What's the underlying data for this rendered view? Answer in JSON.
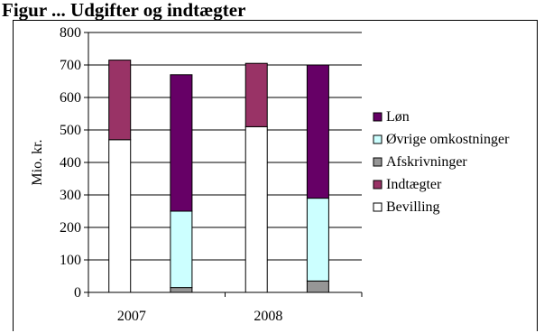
{
  "title": "Figur ...  Udgifter og indtægter",
  "chart_data": {
    "type": "bar",
    "stacked": true,
    "ylabel": "Mio. kr.",
    "ylim": [
      0,
      800
    ],
    "yticks": [
      0,
      100,
      200,
      300,
      400,
      500,
      600,
      700,
      800
    ],
    "groups": [
      {
        "label": "2007",
        "bars": [
          {
            "segments": [
              {
                "series": "Bevilling",
                "value": 470
              },
              {
                "series": "Indtægter",
                "value": 245
              }
            ]
          },
          {
            "segments": [
              {
                "series": "Afskrivninger",
                "value": 15
              },
              {
                "series": "Øvrige omkostninger",
                "value": 235
              },
              {
                "series": "Løn",
                "value": 420
              }
            ]
          }
        ]
      },
      {
        "label": "2008",
        "bars": [
          {
            "segments": [
              {
                "series": "Bevilling",
                "value": 510
              },
              {
                "series": "Indtægter",
                "value": 195
              }
            ]
          },
          {
            "segments": [
              {
                "series": "Afskrivninger",
                "value": 35
              },
              {
                "series": "Øvrige omkostninger",
                "value": 255
              },
              {
                "series": "Løn",
                "value": 410
              }
            ]
          }
        ]
      }
    ],
    "legend": [
      {
        "name": "Løn",
        "color": "#660066"
      },
      {
        "name": "Øvrige omkostninger",
        "color": "#ccffff"
      },
      {
        "name": "Afskrivninger",
        "color": "#969696"
      },
      {
        "name": "Indtægter",
        "color": "#993366"
      },
      {
        "name": "Bevilling",
        "color": "#ffffff"
      }
    ],
    "legend_position": "right",
    "grid": true
  }
}
